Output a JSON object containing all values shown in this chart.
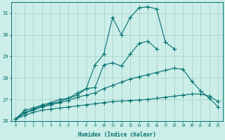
{
  "xlabel": "Humidex (Indice chaleur)",
  "x_values": [
    0,
    1,
    2,
    3,
    4,
    5,
    6,
    7,
    8,
    9,
    10,
    11,
    12,
    13,
    14,
    15,
    16,
    17,
    18,
    19,
    20,
    21,
    22,
    23
  ],
  "line1": [
    26.1,
    26.5,
    26.6,
    26.75,
    26.85,
    27.0,
    27.05,
    27.2,
    27.5,
    28.6,
    29.1,
    30.8,
    30.0,
    30.8,
    31.25,
    31.3,
    31.2,
    29.65,
    29.35,
    null,
    null,
    null,
    null,
    null
  ],
  "line2": [
    26.1,
    26.4,
    26.55,
    26.7,
    26.8,
    26.9,
    27.05,
    27.3,
    27.5,
    27.55,
    28.6,
    28.7,
    28.55,
    29.1,
    29.6,
    29.7,
    29.35,
    null,
    null,
    null,
    null,
    null,
    null,
    null
  ],
  "line3": [
    26.1,
    26.35,
    26.5,
    26.65,
    26.75,
    26.85,
    26.95,
    27.1,
    27.2,
    27.3,
    27.5,
    27.65,
    27.8,
    27.95,
    28.05,
    28.15,
    28.25,
    28.35,
    28.45,
    28.4,
    27.85,
    27.4,
    27.05,
    26.65
  ],
  "line4": [
    26.1,
    26.25,
    26.4,
    26.5,
    26.55,
    26.6,
    26.65,
    26.7,
    26.75,
    26.8,
    26.85,
    26.9,
    26.92,
    26.95,
    26.97,
    27.0,
    27.05,
    27.1,
    27.15,
    27.2,
    27.25,
    27.25,
    27.15,
    26.9
  ],
  "line_color": "#007070",
  "bg_color": "#cceee8",
  "grid_color": "#aad4cc",
  "ylim": [
    26.0,
    31.5
  ],
  "yticks": [
    26,
    27,
    28,
    29,
    30,
    31
  ],
  "xlim": [
    -0.5,
    23.5
  ],
  "xticks": [
    0,
    1,
    2,
    3,
    4,
    5,
    6,
    7,
    8,
    9,
    10,
    11,
    12,
    13,
    14,
    15,
    16,
    17,
    18,
    19,
    20,
    21,
    22,
    23
  ]
}
